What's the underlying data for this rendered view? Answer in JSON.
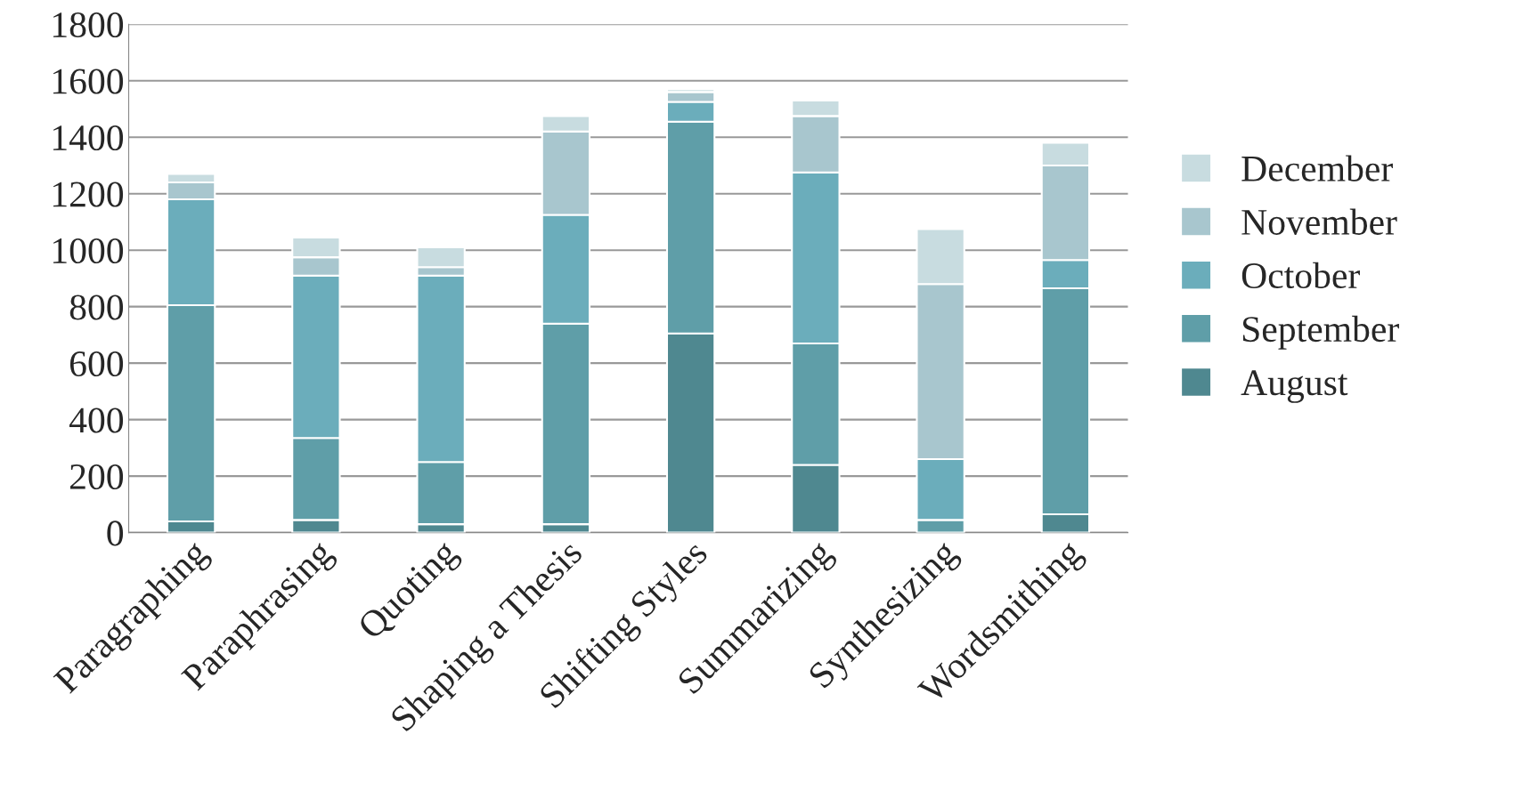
{
  "chart_data": {
    "type": "bar",
    "stacked": true,
    "categories": [
      "Paragraphing",
      "Paraphrasing",
      "Quoting",
      "Shaping a Thesis",
      "Shifting Styles",
      "Summarizing",
      "Synthesizing",
      "Wordsmithing"
    ],
    "series": [
      {
        "name": "August",
        "color": "#4f8890",
        "values": [
          40,
          45,
          30,
          30,
          705,
          240,
          0,
          65
        ]
      },
      {
        "name": "September",
        "color": "#5f9ea8",
        "values": [
          765,
          290,
          220,
          710,
          750,
          430,
          45,
          800
        ]
      },
      {
        "name": "October",
        "color": "#6badbb",
        "values": [
          375,
          575,
          660,
          385,
          70,
          605,
          215,
          100
        ]
      },
      {
        "name": "November",
        "color": "#a8c6ce",
        "values": [
          60,
          65,
          30,
          295,
          35,
          200,
          620,
          335
        ]
      },
      {
        "name": "December",
        "color": "#c8dce0",
        "values": [
          30,
          70,
          70,
          55,
          10,
          55,
          195,
          80
        ]
      }
    ],
    "ylim": [
      0,
      1800
    ],
    "yticks": [
      0,
      200,
      400,
      600,
      800,
      1000,
      1200,
      1400,
      1600,
      1800
    ],
    "grid": "y",
    "legend": "right"
  }
}
